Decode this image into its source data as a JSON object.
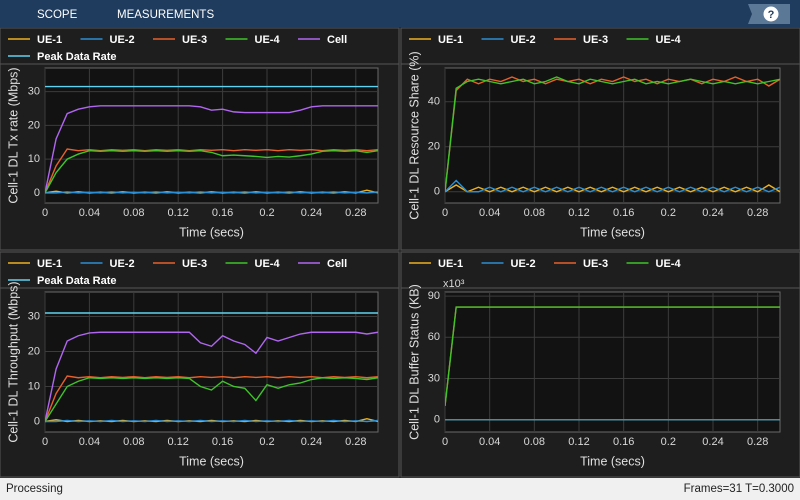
{
  "toolbar": {
    "tabs": [
      "SCOPE",
      "MEASUREMENTS"
    ],
    "help": "?"
  },
  "status_bar": {
    "status": "Processing",
    "info": "Frames=31  T=0.3000"
  },
  "chart_data": [
    {
      "type": "line",
      "xlabel": "Time (secs)",
      "ylabel": "Cell-1 DL Tx rate (Mbps)",
      "grid": true,
      "x": [
        0,
        0.01,
        0.02,
        0.03,
        0.04,
        0.05,
        0.06,
        0.07,
        0.08,
        0.09,
        0.1,
        0.11,
        0.12,
        0.13,
        0.14,
        0.15,
        0.16,
        0.17,
        0.18,
        0.19,
        0.2,
        0.21,
        0.22,
        0.23,
        0.24,
        0.25,
        0.26,
        0.27,
        0.28,
        0.29,
        0.3
      ],
      "xlim": [
        0,
        0.3
      ],
      "xticks": [
        0,
        0.04,
        0.08,
        0.12,
        0.16,
        0.2,
        0.24,
        0.28
      ],
      "ylim": [
        -3,
        37
      ],
      "yticks": [
        0,
        10,
        20,
        30
      ],
      "series": [
        {
          "name": "UE-1",
          "color": "#edb120",
          "values": [
            0,
            0.5,
            0,
            0.3,
            0,
            0.2,
            0,
            0.3,
            0,
            0.2,
            0,
            0.3,
            0,
            0.2,
            0,
            0.3,
            0,
            0.2,
            0,
            0.3,
            0,
            0.2,
            0,
            0.3,
            0,
            0.2,
            0,
            0.3,
            0,
            0.8,
            0
          ]
        },
        {
          "name": "UE-2",
          "color": "#2a8fd6",
          "values": [
            0,
            0,
            0.3,
            0,
            0.2,
            0,
            0.3,
            0,
            0.2,
            0,
            0.3,
            0,
            0.2,
            0,
            0.3,
            0,
            0.2,
            0,
            0.3,
            0,
            0.2,
            0,
            0.3,
            0,
            0.2,
            0,
            0.3,
            0,
            0.2,
            0,
            0.3
          ]
        },
        {
          "name": "UE-3",
          "color": "#e8602a",
          "values": [
            0,
            8,
            13,
            12.5,
            12.8,
            12.5,
            12.8,
            12.6,
            12.8,
            12.5,
            12.8,
            12.6,
            12.8,
            12.5,
            12.8,
            12.6,
            12.8,
            12.5,
            12.8,
            12.6,
            12.8,
            12.5,
            12.8,
            12.6,
            12.8,
            12.5,
            12.8,
            12.6,
            12.8,
            12.5,
            12.8
          ]
        },
        {
          "name": "UE-4",
          "color": "#3fc42a",
          "values": [
            0,
            6,
            10,
            11.5,
            12.5,
            12.3,
            12.5,
            12.3,
            12.5,
            12.3,
            12.5,
            12.3,
            12.5,
            12.3,
            12.5,
            12,
            11,
            11.2,
            11,
            10.8,
            10.5,
            10.8,
            10.6,
            11,
            11.5,
            12.3,
            12.5,
            12.3,
            12.5,
            12,
            12.5
          ]
        },
        {
          "name": "Cell",
          "color": "#b066f0",
          "values": [
            0,
            16,
            23.5,
            24.8,
            25.5,
            25.8,
            25.8,
            25.8,
            25.8,
            25.8,
            25.8,
            25.8,
            25.8,
            25.8,
            25.5,
            24.5,
            24.8,
            24,
            23.8,
            23.8,
            23.8,
            23.8,
            23.8,
            24.5,
            25.5,
            25.8,
            25.8,
            25.8,
            25.8,
            25.8,
            25.8
          ]
        },
        {
          "name": "Peak Data Rate",
          "color": "#5fd3f0",
          "values": [
            31.5,
            31.5,
            31.5,
            31.5,
            31.5,
            31.5,
            31.5,
            31.5,
            31.5,
            31.5,
            31.5,
            31.5,
            31.5,
            31.5,
            31.5,
            31.5,
            31.5,
            31.5,
            31.5,
            31.5,
            31.5,
            31.5,
            31.5,
            31.5,
            31.5,
            31.5,
            31.5,
            31.5,
            31.5,
            31.5,
            31.5
          ]
        }
      ]
    },
    {
      "type": "line",
      "xlabel": "Time (secs)",
      "ylabel": "Cell-1 DL Resource Share (%)",
      "grid": true,
      "x": [
        0,
        0.01,
        0.02,
        0.03,
        0.04,
        0.05,
        0.06,
        0.07,
        0.08,
        0.09,
        0.1,
        0.11,
        0.12,
        0.13,
        0.14,
        0.15,
        0.16,
        0.17,
        0.18,
        0.19,
        0.2,
        0.21,
        0.22,
        0.23,
        0.24,
        0.25,
        0.26,
        0.27,
        0.28,
        0.29,
        0.3
      ],
      "xlim": [
        0,
        0.3
      ],
      "xticks": [
        0,
        0.04,
        0.08,
        0.12,
        0.16,
        0.2,
        0.24,
        0.28
      ],
      "ylim": [
        -5,
        55
      ],
      "yticks": [
        0,
        20,
        40
      ],
      "series": [
        {
          "name": "UE-1",
          "color": "#edb120",
          "values": [
            0,
            3,
            0,
            2,
            0,
            2,
            0,
            2,
            0,
            2,
            0,
            2,
            0,
            2,
            0,
            2,
            0,
            2,
            0,
            2,
            0,
            2,
            0,
            2,
            0,
            2,
            0,
            2,
            0,
            3,
            0
          ]
        },
        {
          "name": "UE-2",
          "color": "#2a8fd6",
          "values": [
            0,
            5,
            0,
            0,
            2,
            0,
            2,
            0,
            2,
            0,
            2,
            0,
            2,
            0,
            2,
            0,
            2,
            0,
            2,
            0,
            2,
            0,
            2,
            0,
            2,
            0,
            2,
            0,
            2,
            0,
            2
          ]
        },
        {
          "name": "UE-3",
          "color": "#e8602a",
          "values": [
            0,
            45,
            50,
            48,
            50,
            49,
            51,
            49,
            50,
            48,
            50,
            49,
            50,
            48,
            50,
            49,
            51,
            49,
            50,
            48,
            50,
            49,
            50,
            48,
            50,
            49,
            51,
            49,
            50,
            47,
            50
          ]
        },
        {
          "name": "UE-4",
          "color": "#3fc42a",
          "values": [
            0,
            46,
            49,
            50,
            49,
            48,
            49,
            50,
            48,
            49,
            51,
            49,
            48,
            50,
            49,
            48,
            49,
            50,
            48,
            49,
            48,
            49,
            50,
            49,
            48,
            49,
            48,
            49,
            48,
            49,
            50
          ]
        }
      ]
    },
    {
      "type": "line",
      "xlabel": "Time (secs)",
      "ylabel": "Cell-1 DL Throughput (Mbps)",
      "grid": true,
      "x": [
        0,
        0.01,
        0.02,
        0.03,
        0.04,
        0.05,
        0.06,
        0.07,
        0.08,
        0.09,
        0.1,
        0.11,
        0.12,
        0.13,
        0.14,
        0.15,
        0.16,
        0.17,
        0.18,
        0.19,
        0.2,
        0.21,
        0.22,
        0.23,
        0.24,
        0.25,
        0.26,
        0.27,
        0.28,
        0.29,
        0.3
      ],
      "xlim": [
        0,
        0.3
      ],
      "xticks": [
        0,
        0.04,
        0.08,
        0.12,
        0.16,
        0.2,
        0.24,
        0.28
      ],
      "ylim": [
        -3,
        37
      ],
      "yticks": [
        0,
        10,
        20,
        30
      ],
      "series": [
        {
          "name": "UE-1",
          "color": "#edb120",
          "values": [
            0,
            0.5,
            0,
            0.3,
            0,
            0.2,
            0,
            0.3,
            0,
            0.2,
            0,
            0.3,
            0,
            0.2,
            0,
            0.3,
            0,
            0.2,
            0,
            0.3,
            0,
            0.2,
            0,
            0.3,
            0,
            0.2,
            0,
            0.3,
            0,
            0.8,
            0
          ]
        },
        {
          "name": "UE-2",
          "color": "#2a8fd6",
          "values": [
            0,
            0,
            0.3,
            0,
            0.2,
            0,
            0.3,
            0,
            0.2,
            0,
            0.3,
            0,
            0.2,
            0,
            0.3,
            0,
            0.2,
            0,
            0.3,
            0,
            0.2,
            0,
            0.3,
            0,
            0.2,
            0,
            0.3,
            0,
            0.2,
            0,
            0.3
          ]
        },
        {
          "name": "UE-3",
          "color": "#e8602a",
          "values": [
            0,
            8,
            13,
            12.5,
            12.8,
            12.5,
            12.8,
            12.6,
            12.8,
            12.5,
            12.8,
            12.6,
            12.8,
            12.5,
            12.8,
            12.6,
            12.8,
            12.5,
            12.8,
            12.6,
            12.8,
            12.5,
            12.8,
            12.6,
            12.8,
            12.5,
            12.8,
            12.6,
            12.8,
            12.5,
            12.8
          ]
        },
        {
          "name": "UE-4",
          "color": "#3fc42a",
          "values": [
            0,
            5,
            10,
            11.5,
            12.5,
            12.3,
            12.5,
            12.3,
            12.5,
            12.3,
            12.5,
            12.3,
            12.5,
            12.3,
            10,
            9,
            11.5,
            10,
            9.5,
            6,
            10.5,
            9.5,
            10.5,
            11,
            12,
            12.5,
            12.3,
            12.5,
            12.3,
            12,
            12.5
          ]
        },
        {
          "name": "Cell",
          "color": "#b066f0",
          "values": [
            0,
            15,
            23,
            24.5,
            25.3,
            25.5,
            25.5,
            25.5,
            25.5,
            25.5,
            25.5,
            25.5,
            25.5,
            25.5,
            22.5,
            21.5,
            24.5,
            23,
            22,
            19.5,
            24,
            23,
            24,
            25,
            25.5,
            25.5,
            25.5,
            25.5,
            25.5,
            25,
            25.5
          ]
        },
        {
          "name": "Peak Data Rate",
          "color": "#5fd3f0",
          "values": [
            31,
            31,
            31,
            31,
            31,
            31,
            31,
            31,
            31,
            31,
            31,
            31,
            31,
            31,
            31,
            31,
            31,
            31,
            31,
            31,
            31,
            31,
            31,
            31,
            31,
            31,
            31,
            31,
            31,
            31,
            31
          ]
        }
      ]
    },
    {
      "type": "line",
      "xlabel": "Time (secs)",
      "ylabel": "Cell-1 DL Buffer Status (KB)",
      "exponent_label": "x10³",
      "grid": true,
      "x": [
        0,
        0.01,
        0.02,
        0.03,
        0.04,
        0.05,
        0.06,
        0.07,
        0.08,
        0.09,
        0.1,
        0.11,
        0.12,
        0.13,
        0.14,
        0.15,
        0.16,
        0.17,
        0.18,
        0.19,
        0.2,
        0.21,
        0.22,
        0.23,
        0.24,
        0.25,
        0.26,
        0.27,
        0.28,
        0.29,
        0.3
      ],
      "xlim": [
        0,
        0.3
      ],
      "xticks": [
        0,
        0.04,
        0.08,
        0.12,
        0.16,
        0.2,
        0.24,
        0.28
      ],
      "ylim": [
        -9,
        93
      ],
      "yticks": [
        0,
        30,
        60,
        90
      ],
      "series": [
        {
          "name": "UE-1",
          "color": "#edb120",
          "values": [
            0,
            0,
            0,
            0,
            0,
            0,
            0,
            0,
            0,
            0,
            0,
            0,
            0,
            0,
            0,
            0,
            0,
            0,
            0,
            0,
            0,
            0,
            0,
            0,
            0,
            0,
            0,
            0,
            0,
            0,
            0
          ]
        },
        {
          "name": "UE-2",
          "color": "#2a8fd6",
          "values": [
            0,
            0,
            0,
            0,
            0,
            0,
            0,
            0,
            0,
            0,
            0,
            0,
            0,
            0,
            0,
            0,
            0,
            0,
            0,
            0,
            0,
            0,
            0,
            0,
            0,
            0,
            0,
            0,
            0,
            0,
            0
          ]
        },
        {
          "name": "UE-3",
          "color": "#e8602a",
          "values": [
            10,
            82,
            82,
            82,
            82,
            82,
            82,
            82,
            82,
            82,
            82,
            82,
            82,
            82,
            82,
            82,
            82,
            82,
            82,
            82,
            82,
            82,
            82,
            82,
            82,
            82,
            82,
            82,
            82,
            82,
            82
          ]
        },
        {
          "name": "UE-4",
          "color": "#3fc42a",
          "values": [
            10,
            82,
            82,
            82,
            82,
            82,
            82,
            82,
            82,
            82,
            82,
            82,
            82,
            82,
            82,
            82,
            82,
            82,
            82,
            82,
            82,
            82,
            82,
            82,
            82,
            82,
            82,
            82,
            82,
            82,
            82
          ]
        }
      ]
    }
  ]
}
